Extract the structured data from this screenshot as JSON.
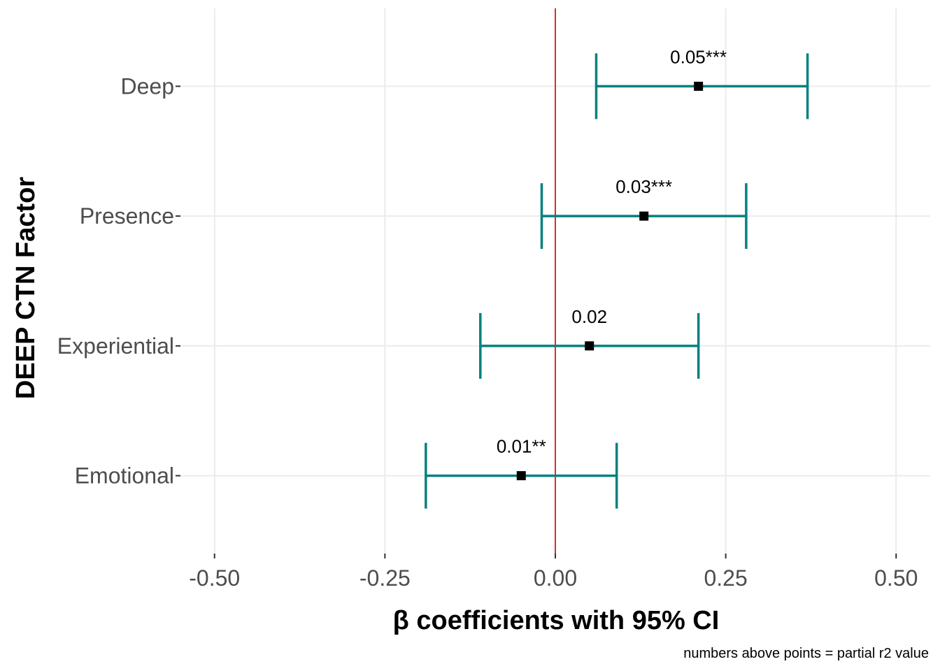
{
  "chart_data": {
    "type": "scatter",
    "subtype": "coefficient-plot-with-error-bars",
    "xlabel": "β coefficients with 95% CI",
    "ylabel": "DEEP CTN Factor",
    "caption": "numbers above points = partial r2 value",
    "xlim": [
      -0.55,
      0.55
    ],
    "x_ticks": [
      -0.5,
      -0.25,
      0.0,
      0.25,
      0.5
    ],
    "x_tick_labels": [
      "-0.50",
      "-0.25",
      "0.00",
      "0.25",
      "0.50"
    ],
    "categories": [
      "Deep",
      "Presence",
      "Experiential",
      "Emotional"
    ],
    "points": [
      {
        "category": "Deep",
        "estimate": 0.21,
        "ci_low": 0.06,
        "ci_high": 0.37,
        "label": "0.05***"
      },
      {
        "category": "Presence",
        "estimate": 0.13,
        "ci_low": -0.02,
        "ci_high": 0.28,
        "label": "0.03***"
      },
      {
        "category": "Experiential",
        "estimate": 0.05,
        "ci_low": -0.11,
        "ci_high": 0.21,
        "label": "0.02"
      },
      {
        "category": "Emotional",
        "estimate": -0.05,
        "ci_low": -0.19,
        "ci_high": 0.09,
        "label": "0.01**"
      }
    ],
    "reference_line_x": 0.0,
    "grid": true,
    "legend": "none",
    "colors": {
      "errorbar": "#078080",
      "point": "#000000",
      "reference_line": "#cc0000",
      "grid": "#ebebeb"
    }
  }
}
